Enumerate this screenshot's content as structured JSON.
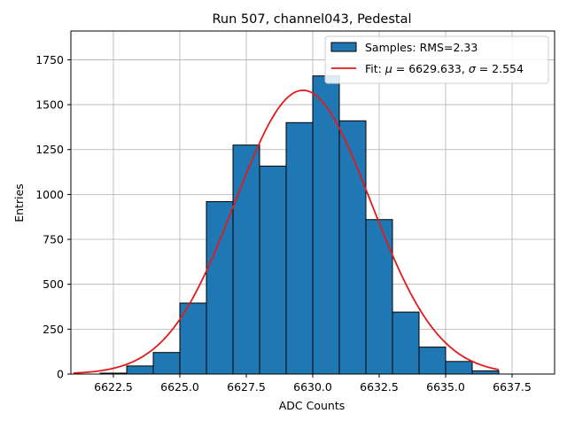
{
  "chart_data": {
    "type": "bar",
    "title": "Run 507, channel043, Pedestal",
    "xlabel": "ADC Counts",
    "ylabel": "Entries",
    "xlim": [
      6620.9,
      6639.1
    ],
    "ylim": [
      0,
      1910
    ],
    "xticks": [
      6622.5,
      6625.0,
      6627.5,
      6630.0,
      6632.5,
      6635.0,
      6637.5
    ],
    "xtick_labels": [
      "6622.5",
      "6625.0",
      "6627.5",
      "6630.0",
      "6632.5",
      "6635.0",
      "6637.5"
    ],
    "yticks": [
      0,
      250,
      500,
      750,
      1000,
      1250,
      1500,
      1750
    ],
    "ytick_labels": [
      "0",
      "250",
      "500",
      "750",
      "1000",
      "1250",
      "1500",
      "1750"
    ],
    "grid": true,
    "legend_position": "top-right",
    "histogram": {
      "name": "Samples: RMS=2.33",
      "color": "#1f77b4",
      "edge_color": "#000000",
      "bin_edges": [
        6622,
        6623,
        6624,
        6625,
        6626,
        6627,
        6628,
        6629,
        6630,
        6631,
        6632,
        6633,
        6634,
        6635,
        6636,
        6637
      ],
      "counts": [
        5,
        45,
        120,
        395,
        960,
        1275,
        1158,
        1400,
        1660,
        1410,
        860,
        345,
        150,
        70,
        18
      ]
    },
    "fit": {
      "name_prefix": "Fit: ",
      "name_mu_symbol": "μ",
      "name_mu_rest": " = 6629.633, ",
      "name_sigma_symbol": "σ",
      "name_sigma_rest": " = 2.554",
      "color": "#e31a1c",
      "mu": 6629.633,
      "sigma": 2.554,
      "amplitude": 1580,
      "x_range": [
        6621,
        6637
      ]
    }
  }
}
